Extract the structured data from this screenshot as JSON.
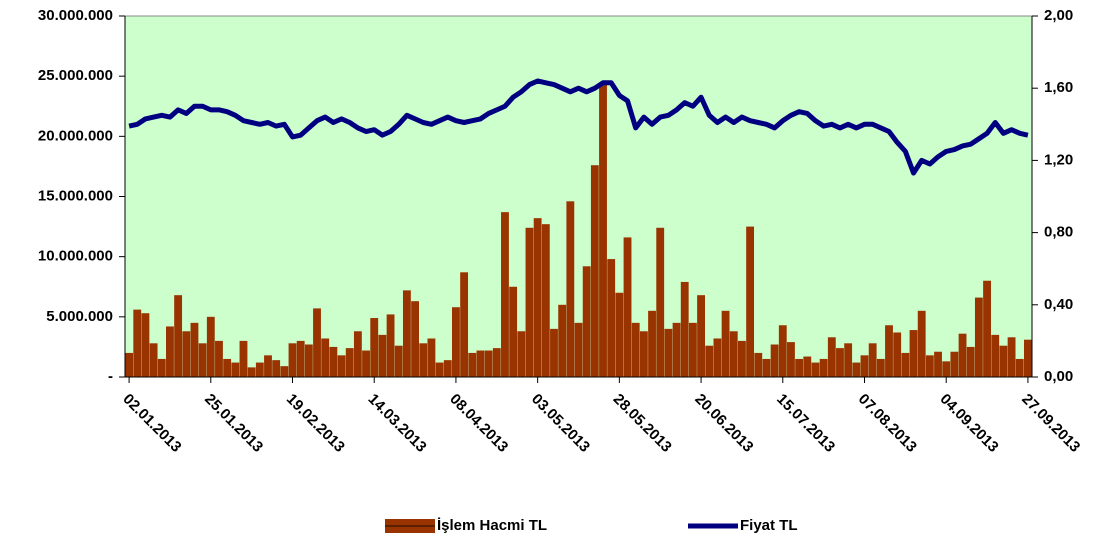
{
  "chart_data": {
    "type": "bar-line",
    "categories": [
      "02.01.2013",
      null,
      null,
      null,
      null,
      null,
      null,
      null,
      null,
      null,
      "25.01.2013",
      null,
      null,
      null,
      null,
      null,
      null,
      null,
      null,
      null,
      "19.02.2013",
      null,
      null,
      null,
      null,
      null,
      null,
      null,
      null,
      null,
      "14.03.2013",
      null,
      null,
      null,
      null,
      null,
      null,
      null,
      null,
      null,
      "08.04.2013",
      null,
      null,
      null,
      null,
      null,
      null,
      null,
      null,
      null,
      "03.05.2013",
      null,
      null,
      null,
      null,
      null,
      null,
      null,
      null,
      null,
      "28.05.2013",
      null,
      null,
      null,
      null,
      null,
      null,
      null,
      null,
      null,
      "20.06.2013",
      null,
      null,
      null,
      null,
      null,
      null,
      null,
      null,
      null,
      "15.07.2013",
      null,
      null,
      null,
      null,
      null,
      null,
      null,
      null,
      null,
      "07.08.2013",
      null,
      null,
      null,
      null,
      null,
      null,
      null,
      null,
      null,
      "04.09.2013",
      null,
      null,
      null,
      null,
      null,
      null,
      null,
      null,
      null,
      "27.09.2013"
    ],
    "series": [
      {
        "name": "İşlem Hacmi TL",
        "color": "#993300",
        "type": "bar",
        "values": [
          2000000,
          5600000,
          5300000,
          2800000,
          1500000,
          4200000,
          6800000,
          3800000,
          4500000,
          2800000,
          5000000,
          3000000,
          1500000,
          1200000,
          3000000,
          800000,
          1200000,
          1800000,
          1400000,
          900000,
          2800000,
          3000000,
          2700000,
          5700000,
          3200000,
          2500000,
          1800000,
          2400000,
          3800000,
          2200000,
          4900000,
          3500000,
          5200000,
          2600000,
          7200000,
          6300000,
          2800000,
          3200000,
          1200000,
          1400000,
          5800000,
          8700000,
          2000000,
          2200000,
          2200000,
          2400000,
          13700000,
          7500000,
          3800000,
          12400000,
          13200000,
          12700000,
          4000000,
          6000000,
          14600000,
          4500000,
          9200000,
          17600000,
          24300000,
          9800000,
          7000000,
          11600000,
          4500000,
          3800000,
          5500000,
          12400000,
          4000000,
          4500000,
          7900000,
          4500000,
          6800000,
          2600000,
          3200000,
          5500000,
          3800000,
          3000000,
          12500000,
          2000000,
          1500000,
          2700000,
          4300000,
          2900000,
          1500000,
          1700000,
          1200000,
          1500000,
          3300000,
          2400000,
          2800000,
          1200000,
          1800000,
          2800000,
          1500000,
          4300000,
          3700000,
          2000000,
          3900000,
          5500000,
          1800000,
          2100000,
          1300000,
          2100000,
          3600000,
          2500000,
          6600000,
          8000000,
          3500000,
          2600000,
          3300000,
          1500000,
          3100000
        ]
      },
      {
        "name": "Fiyat TL",
        "color": "#000080",
        "type": "line",
        "axis": "y2",
        "values": [
          1.39,
          1.4,
          1.43,
          1.44,
          1.45,
          1.44,
          1.48,
          1.46,
          1.5,
          1.5,
          1.48,
          1.48,
          1.47,
          1.45,
          1.42,
          1.41,
          1.4,
          1.41,
          1.39,
          1.4,
          1.33,
          1.34,
          1.38,
          1.42,
          1.44,
          1.41,
          1.43,
          1.41,
          1.38,
          1.36,
          1.37,
          1.34,
          1.36,
          1.4,
          1.45,
          1.43,
          1.41,
          1.4,
          1.42,
          1.44,
          1.42,
          1.41,
          1.42,
          1.43,
          1.46,
          1.48,
          1.5,
          1.55,
          1.58,
          1.62,
          1.64,
          1.63,
          1.62,
          1.6,
          1.58,
          1.6,
          1.58,
          1.6,
          1.63,
          1.63,
          1.56,
          1.53,
          1.38,
          1.44,
          1.4,
          1.44,
          1.45,
          1.48,
          1.52,
          1.5,
          1.55,
          1.45,
          1.41,
          1.44,
          1.41,
          1.44,
          1.42,
          1.41,
          1.4,
          1.38,
          1.42,
          1.45,
          1.47,
          1.46,
          1.42,
          1.39,
          1.4,
          1.38,
          1.4,
          1.38,
          1.4,
          1.4,
          1.38,
          1.36,
          1.3,
          1.25,
          1.13,
          1.2,
          1.18,
          1.22,
          1.25,
          1.26,
          1.28,
          1.29,
          1.32,
          1.35,
          1.41,
          1.35,
          1.37,
          1.35,
          1.34
        ]
      }
    ],
    "ylim": [
      0,
      30000000
    ],
    "yticks": [
      {
        "value": 0,
        "label": "-"
      },
      {
        "value": 5000000,
        "label": "5.000.000"
      },
      {
        "value": 10000000,
        "label": "10.000.000"
      },
      {
        "value": 15000000,
        "label": "15.000.000"
      },
      {
        "value": 20000000,
        "label": "20.000.000"
      },
      {
        "value": 25000000,
        "label": "25.000.000"
      },
      {
        "value": 30000000,
        "label": "30.000.000"
      }
    ],
    "y2lim": [
      0,
      2
    ],
    "y2ticks": [
      {
        "value": 0,
        "label": "0,00"
      },
      {
        "value": 0.4,
        "label": "0,40"
      },
      {
        "value": 0.8,
        "label": "0,80"
      },
      {
        "value": 1.2,
        "label": "1,20"
      },
      {
        "value": 1.6,
        "label": "1,60"
      },
      {
        "value": 2,
        "label": "2,00"
      }
    ],
    "plot_background": "#ccffcc",
    "legend": "bottom"
  }
}
